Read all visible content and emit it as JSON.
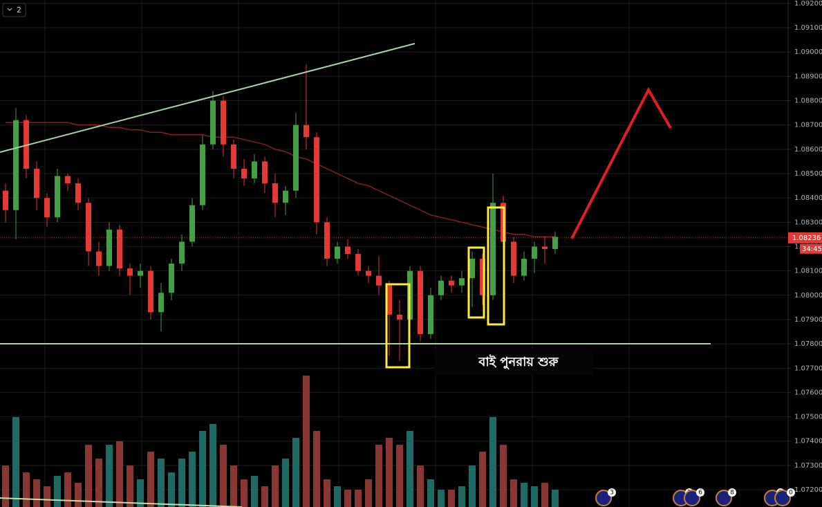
{
  "chart_data": {
    "type": "candlestick",
    "up_color": "#43a047",
    "down_color": "#e53935",
    "volume_up_color": "#1f6b66",
    "volume_down_color": "#8a3632",
    "ma_color": "#8b1f1f",
    "open": [
      1.0843,
      1.0835,
      1.0872,
      1.0852,
      1.084,
      1.0832,
      1.0849,
      1.0846,
      1.0838,
      1.0818,
      1.0812,
      1.0827,
      1.0811,
      1.0808,
      1.081,
      1.0793,
      1.0801,
      1.0813,
      1.0822,
      1.0837,
      1.0862,
      1.088,
      1.0862,
      1.0852,
      1.0848,
      1.0855,
      1.0846,
      1.0838,
      1.0843,
      1.087,
      1.0865,
      1.083,
      1.0815,
      1.082,
      1.0817,
      1.081,
      1.0808,
      1.0804,
      1.0792,
      1.079,
      1.081,
      1.0784,
      1.08,
      1.0806,
      1.0804,
      1.0807,
      1.0815,
      1.08,
      1.0838,
      1.0822,
      1.0808,
      1.0815,
      1.082,
      1.0819
    ],
    "high": [
      1.0846,
      1.0877,
      1.0874,
      1.0855,
      1.0842,
      1.0852,
      1.085,
      1.0848,
      1.084,
      1.0822,
      1.083,
      1.0829,
      1.0813,
      1.0813,
      1.0812,
      1.0805,
      1.0815,
      1.0825,
      1.084,
      1.0866,
      1.0884,
      1.0882,
      1.0864,
      1.0856,
      1.0858,
      1.0857,
      1.085,
      1.0845,
      1.0875,
      1.0895,
      1.0867,
      1.0832,
      1.0822,
      1.0823,
      1.0819,
      1.0812,
      1.0816,
      1.0806,
      1.0798,
      1.0812,
      1.0812,
      1.0803,
      1.0808,
      1.0808,
      1.081,
      1.0818,
      1.0817,
      1.085,
      1.0841,
      1.0824,
      1.0818,
      1.0822,
      1.0824,
      1.0826
    ],
    "low": [
      1.083,
      1.0823,
      1.0848,
      1.0835,
      1.0828,
      1.083,
      1.0843,
      1.0835,
      1.0812,
      1.0808,
      1.081,
      1.0808,
      1.08,
      1.0803,
      1.079,
      1.0785,
      1.0798,
      1.081,
      1.082,
      1.0835,
      1.086,
      1.0857,
      1.0848,
      1.0845,
      1.0846,
      1.0842,
      1.0832,
      1.0833,
      1.084,
      1.086,
      1.0825,
      1.0812,
      1.0813,
      1.0815,
      1.0808,
      1.0805,
      1.08,
      1.0775,
      1.0773,
      1.0786,
      1.0781,
      1.0782,
      1.0798,
      1.0801,
      1.0801,
      1.0795,
      1.0796,
      1.0798,
      1.0818,
      1.0805,
      1.0806,
      1.0809,
      1.0813,
      1.0817
    ],
    "close": [
      1.0835,
      1.0872,
      1.0852,
      1.084,
      1.0832,
      1.0849,
      1.0846,
      1.0838,
      1.0818,
      1.0812,
      1.0827,
      1.0811,
      1.0808,
      1.081,
      1.0793,
      1.0801,
      1.0813,
      1.0822,
      1.0837,
      1.0862,
      1.088,
      1.0862,
      1.0852,
      1.0848,
      1.0855,
      1.0846,
      1.0838,
      1.0843,
      1.087,
      1.0865,
      1.083,
      1.0815,
      1.082,
      1.0817,
      1.081,
      1.0808,
      1.0804,
      1.0792,
      1.079,
      1.081,
      1.0784,
      1.08,
      1.0806,
      1.0804,
      1.0807,
      1.0815,
      1.08,
      1.0838,
      1.0822,
      1.0808,
      1.0815,
      1.082,
      1.0819,
      1.0824
    ],
    "volume": [
      60,
      130,
      50,
      40,
      30,
      45,
      50,
      35,
      90,
      70,
      90,
      95,
      60,
      40,
      80,
      70,
      50,
      70,
      80,
      110,
      120,
      90,
      60,
      40,
      45,
      30,
      60,
      70,
      100,
      190,
      110,
      40,
      30,
      25,
      25,
      40,
      90,
      100,
      90,
      110,
      60,
      40,
      25,
      25,
      30,
      60,
      80,
      130,
      90,
      40,
      35,
      30,
      35,
      25
    ],
    "ma": [
      1.0871,
      1.0871,
      1.0871,
      1.0871,
      1.0871,
      1.0871,
      1.0871,
      1.087,
      1.087,
      1.087,
      1.0869,
      1.0869,
      1.0868,
      1.0868,
      1.0867,
      1.0867,
      1.0866,
      1.0866,
      1.0866,
      1.0866,
      1.0865,
      1.0865,
      1.0865,
      1.0864,
      1.0863,
      1.0862,
      1.086,
      1.0859,
      1.0857,
      1.0856,
      1.0854,
      1.0852,
      1.085,
      1.0848,
      1.0846,
      1.0845,
      1.0843,
      1.0841,
      1.0839,
      1.0837,
      1.0835,
      1.0833,
      1.0832,
      1.0831,
      1.083,
      1.0829,
      1.0828,
      1.0827,
      1.0826,
      1.0825,
      1.0825,
      1.0824,
      1.0824,
      1.0824
    ],
    "ylim": [
      1.07129,
      1.09214
    ],
    "yticks": [
      {
        "value": 1.072,
        "label": "1.07200"
      },
      {
        "value": 1.073,
        "label": "1.07300"
      },
      {
        "value": 1.074,
        "label": "1.07400"
      },
      {
        "value": 1.075,
        "label": "1.07500"
      },
      {
        "value": 1.076,
        "label": "1.07600"
      },
      {
        "value": 1.077,
        "label": "1.07700"
      },
      {
        "value": 1.078,
        "label": "1.07800"
      },
      {
        "value": 1.079,
        "label": "1.07900"
      },
      {
        "value": 1.08,
        "label": "1.08000"
      },
      {
        "value": 1.081,
        "label": "1.08100"
      },
      {
        "value": 1.082,
        "label": "1.08200"
      },
      {
        "value": 1.083,
        "label": "1.08300"
      },
      {
        "value": 1.084,
        "label": "1.08400"
      },
      {
        "value": 1.085,
        "label": "1.08500"
      },
      {
        "value": 1.086,
        "label": "1.08600"
      },
      {
        "value": 1.087,
        "label": "1.08700"
      },
      {
        "value": 1.088,
        "label": "1.08800"
      },
      {
        "value": 1.089,
        "label": "1.08900"
      },
      {
        "value": 1.09,
        "label": "1.09000"
      },
      {
        "value": 1.091,
        "label": "1.09100"
      },
      {
        "value": 1.092,
        "label": "1.09200"
      }
    ],
    "grid": true,
    "last_price": {
      "value": 1.08236,
      "label": "1.08236"
    },
    "countdown": "34:45",
    "annotation": "বাই পুনরায় শুরু",
    "pane_button": "2",
    "events": [
      "3",
      "2",
      "6",
      "8",
      "2",
      "0"
    ]
  }
}
